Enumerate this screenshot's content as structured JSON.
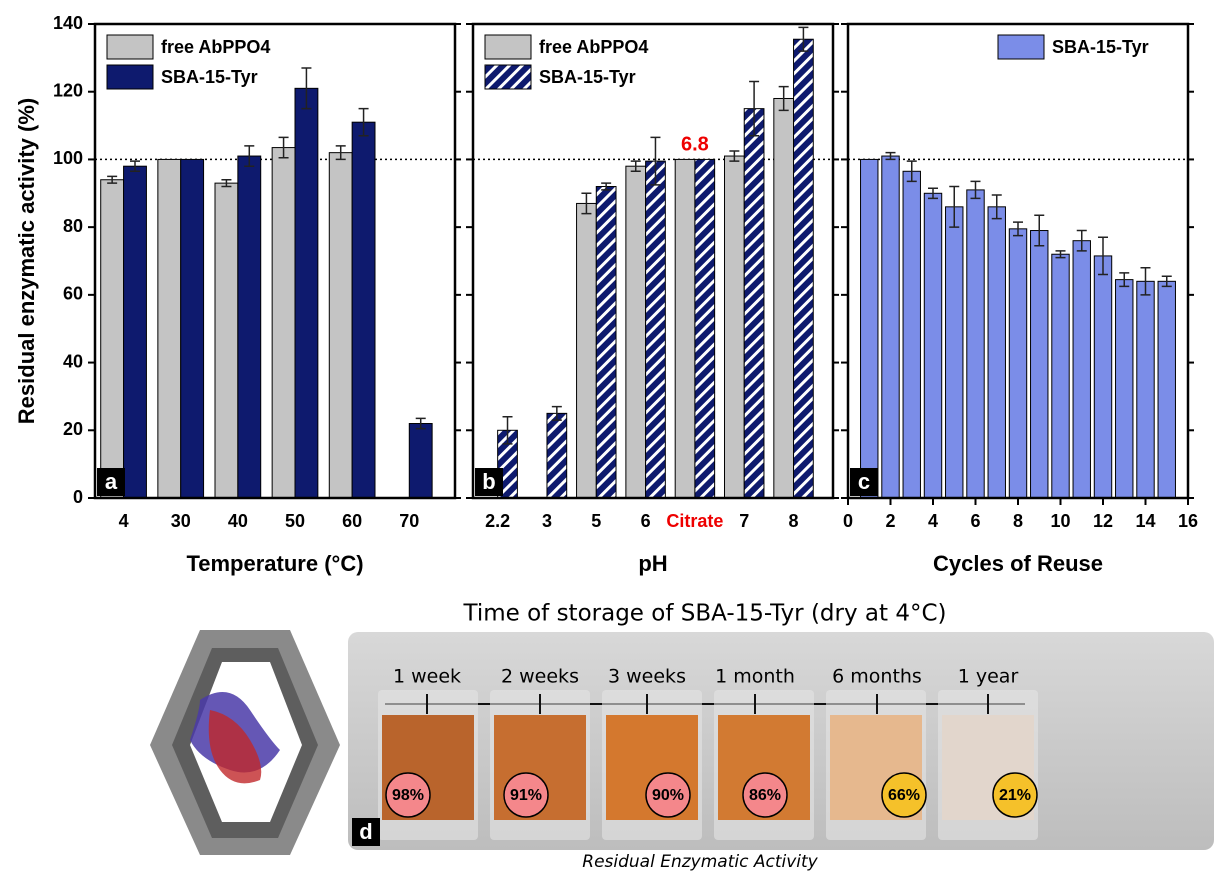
{
  "chart_data": [
    {
      "type": "bar",
      "ylabel": "Residual enzymatic activity (%)",
      "xlabel": "Temperature (°C)",
      "panel_label": "a",
      "categories": [
        "4",
        "30",
        "40",
        "50",
        "60",
        "70"
      ],
      "series": [
        {
          "name": "free AbPPO4",
          "color": "#c4c4c4",
          "values": [
            94,
            100,
            93,
            103.5,
            102,
            null
          ],
          "errors": [
            1,
            0,
            1,
            3,
            2,
            null
          ]
        },
        {
          "name": "SBA-15-Tyr",
          "color": "#0e1a6e",
          "values": [
            98,
            100,
            101,
            121,
            111,
            22
          ],
          "errors": [
            1.5,
            0,
            3,
            6,
            4,
            1.5
          ]
        }
      ],
      "ylim": [
        0,
        140
      ],
      "yticks": [
        0,
        20,
        40,
        60,
        80,
        100,
        120,
        140
      ],
      "hline": 100,
      "legend": "top-left"
    },
    {
      "type": "bar",
      "xlabel": "pH",
      "panel_label": "b",
      "annotation": "6.8",
      "categories": [
        "2.2",
        "3",
        "5",
        "6",
        "Citrate",
        "7",
        "8"
      ],
      "series": [
        {
          "name": "free AbPPO4",
          "color": "#c4c4c4",
          "values": [
            null,
            null,
            87,
            98,
            100,
            101,
            118
          ],
          "errors": [
            null,
            null,
            3,
            1.5,
            0,
            1.5,
            3.5
          ]
        },
        {
          "name": "SBA-15-Tyr",
          "color": "#0e1a6e",
          "hatch": true,
          "values": [
            20,
            25,
            92,
            99.5,
            100,
            115,
            135.5
          ],
          "errors": [
            4,
            2,
            1,
            7,
            0,
            8,
            3.5
          ]
        }
      ],
      "ylim": [
        0,
        140
      ],
      "yticks": [
        0,
        20,
        40,
        60,
        80,
        100,
        120,
        140
      ],
      "hline": 100,
      "legend": "top-left"
    },
    {
      "type": "bar",
      "xlabel": "Cycles of Reuse",
      "panel_label": "c",
      "x": [
        1,
        2,
        3,
        4,
        5,
        6,
        7,
        8,
        9,
        10,
        11,
        12,
        13,
        14,
        15
      ],
      "series": [
        {
          "name": "SBA-15-Tyr",
          "color": "#7b8de8",
          "values": [
            100,
            101,
            96.5,
            90,
            86,
            91,
            86,
            79.5,
            79,
            72,
            76,
            71.5,
            64.5,
            64,
            64
          ],
          "errors": [
            0,
            1,
            3,
            1.5,
            6,
            2.5,
            3.5,
            2,
            4.5,
            1,
            3,
            5.5,
            2,
            4,
            1.5
          ]
        }
      ],
      "xlim": [
        0,
        16
      ],
      "xticks": [
        0,
        2,
        4,
        6,
        8,
        10,
        12,
        14,
        16
      ],
      "ylim": [
        0,
        140
      ],
      "yticks": [
        0,
        20,
        40,
        60,
        80,
        100,
        120,
        140
      ],
      "hline": 100,
      "legend": "top-right"
    }
  ],
  "panel_d": {
    "title": "Time of storage of SBA-15-Tyr (dry at 4°C)",
    "panel_label": "d",
    "caption": "Residual Enzymatic Activity",
    "items": [
      {
        "time": "1 week",
        "activity": 98,
        "activity_label": "98%",
        "color": "#b9642c",
        "badge_color": "#f4878b"
      },
      {
        "time": "2 weeks",
        "activity": 91,
        "activity_label": "91%",
        "color": "#c66e30",
        "badge_color": "#f4878b"
      },
      {
        "time": "3 weeks",
        "activity": 90,
        "activity_label": "90%",
        "color": "#d4782e",
        "badge_color": "#f4878b"
      },
      {
        "time": "1 month",
        "activity": 86,
        "activity_label": "86%",
        "color": "#d27a32",
        "badge_color": "#f4878b"
      },
      {
        "time": "6 months",
        "activity": 66,
        "activity_label": "66%",
        "color": "#e6b88e",
        "badge_color": "#f5c12a"
      },
      {
        "time": "1 year",
        "activity": 21,
        "activity_label": "21%",
        "color": "#e2d6cc",
        "badge_color": "#f5c12a"
      }
    ]
  }
}
